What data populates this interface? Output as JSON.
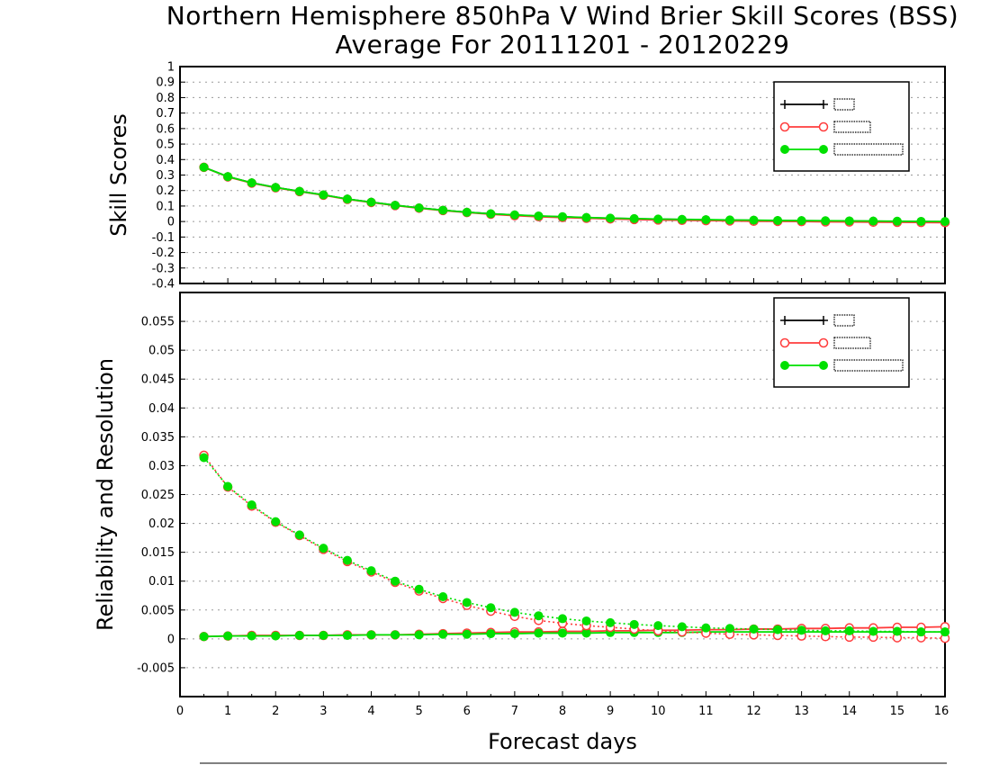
{
  "title": {
    "line1": "Northern Hemisphere 850hPa V Wind Brier Skill Scores (BSS)",
    "line2": "Average For 20111201 - 20120229"
  },
  "colors": {
    "series1": "#000000",
    "series2": "#ff3b3b",
    "series3": "#00e000",
    "grid": "#9a9a9a"
  },
  "chart_data": [
    {
      "type": "line",
      "ylabel": "Skill Scores",
      "xlabel": "",
      "ylim": [
        -0.4,
        1
      ],
      "xlim": [
        0,
        16
      ],
      "grid": true,
      "legend_position": "top-right",
      "y_ticks": [
        "-0.4",
        "-0.3",
        "-0.2",
        "-0.1",
        "0",
        "0.1",
        "0.2",
        "0.3",
        "0.4",
        "0.5",
        "0.6",
        "0.7",
        "0.8",
        "0.9",
        "1"
      ],
      "y_tick_values": [
        -0.4,
        -0.3,
        -0.2,
        -0.1,
        0,
        0.1,
        0.2,
        0.3,
        0.4,
        0.5,
        0.6,
        0.7,
        0.8,
        0.9,
        1
      ],
      "x": [
        0.5,
        1,
        1.5,
        2,
        2.5,
        3,
        3.5,
        4,
        4.5,
        5,
        5.5,
        6,
        6.5,
        7,
        7.5,
        8,
        8.5,
        9,
        9.5,
        10,
        10.5,
        11,
        11.5,
        12,
        12.5,
        13,
        13.5,
        14,
        14.5,
        15,
        15.5,
        16
      ],
      "series": [
        {
          "name": "",
          "marker": "plus",
          "style": "solid",
          "values": [
            0.35,
            0.29,
            0.25,
            0.22,
            0.195,
            0.172,
            0.145,
            0.125,
            0.105,
            0.088,
            0.073,
            0.06,
            0.05,
            0.042,
            0.035,
            0.03,
            0.025,
            0.021,
            0.018,
            0.015,
            0.013,
            0.011,
            0.009,
            0.008,
            0.006,
            0.005,
            0.004,
            0.003,
            0.002,
            0.001,
            0.0,
            -0.001
          ]
        },
        {
          "name": "",
          "marker": "open-circle",
          "style": "solid",
          "values": [
            0.35,
            0.288,
            0.248,
            0.218,
            0.193,
            0.17,
            0.143,
            0.123,
            0.103,
            0.086,
            0.071,
            0.058,
            0.047,
            0.038,
            0.031,
            0.026,
            0.021,
            0.017,
            0.013,
            0.01,
            0.008,
            0.006,
            0.004,
            0.002,
            0.001,
            0.0,
            -0.002,
            -0.003,
            -0.004,
            -0.005,
            -0.006,
            -0.007
          ]
        },
        {
          "name": "",
          "marker": "filled-circle",
          "style": "solid",
          "values": [
            0.35,
            0.29,
            0.25,
            0.22,
            0.195,
            0.172,
            0.145,
            0.125,
            0.105,
            0.088,
            0.073,
            0.06,
            0.05,
            0.043,
            0.036,
            0.031,
            0.026,
            0.022,
            0.019,
            0.016,
            0.014,
            0.012,
            0.01,
            0.009,
            0.007,
            0.006,
            0.005,
            0.004,
            0.003,
            0.002,
            0.001,
            0.0
          ]
        }
      ]
    },
    {
      "type": "line",
      "ylabel": "Reliability and Resolution",
      "xlabel": "Forecast days",
      "ylim": [
        -0.01,
        0.06
      ],
      "xlim": [
        0,
        16
      ],
      "grid": true,
      "legend_position": "top-right",
      "y_ticks": [
        "-0.005",
        "0",
        "0.005",
        "0.01",
        "0.015",
        "0.02",
        "0.025",
        "0.03",
        "0.035",
        "0.04",
        "0.045",
        "0.05",
        "0.055"
      ],
      "y_tick_values": [
        -0.005,
        0,
        0.005,
        0.01,
        0.015,
        0.02,
        0.025,
        0.03,
        0.035,
        0.04,
        0.045,
        0.05,
        0.055
      ],
      "x_ticks": [
        "0",
        "1",
        "2",
        "3",
        "4",
        "5",
        "6",
        "7",
        "8",
        "9",
        "10",
        "11",
        "12",
        "13",
        "14",
        "15",
        "16"
      ],
      "x": [
        0.5,
        1,
        1.5,
        2,
        2.5,
        3,
        3.5,
        4,
        4.5,
        5,
        5.5,
        6,
        6.5,
        7,
        7.5,
        8,
        8.5,
        9,
        9.5,
        10,
        10.5,
        11,
        11.5,
        12,
        12.5,
        13,
        13.5,
        14,
        14.5,
        15,
        15.5,
        16
      ],
      "series": [
        {
          "name": "",
          "group": "reliability",
          "marker": "open-circle",
          "style": "solid",
          "values": [
            0.0004,
            0.0005,
            0.0006,
            0.0006,
            0.0006,
            0.0006,
            0.0007,
            0.0007,
            0.0007,
            0.0008,
            0.0009,
            0.001,
            0.0011,
            0.0012,
            0.0012,
            0.0013,
            0.0013,
            0.0014,
            0.0014,
            0.0015,
            0.0015,
            0.0016,
            0.0016,
            0.0017,
            0.0017,
            0.0018,
            0.0018,
            0.0019,
            0.0019,
            0.002,
            0.002,
            0.0021
          ]
        },
        {
          "name": "",
          "group": "reliability",
          "marker": "filled-circle",
          "style": "solid",
          "values": [
            0.0004,
            0.0005,
            0.0005,
            0.0005,
            0.0006,
            0.0006,
            0.0006,
            0.0007,
            0.0007,
            0.0007,
            0.0008,
            0.0008,
            0.0009,
            0.0009,
            0.001,
            0.001,
            0.001,
            0.0011,
            0.0011,
            0.0011,
            0.0011,
            0.0012,
            0.0012,
            0.0012,
            0.0012,
            0.0012,
            0.0012,
            0.0012,
            0.0012,
            0.0012,
            0.0012,
            0.0012
          ]
        },
        {
          "name": "",
          "group": "resolution",
          "marker": "open-circle",
          "style": "dotted",
          "values": [
            0.0318,
            0.0263,
            0.023,
            0.0202,
            0.0179,
            0.0155,
            0.0134,
            0.0116,
            0.0098,
            0.0083,
            0.007,
            0.0058,
            0.0048,
            0.0039,
            0.0032,
            0.0027,
            0.0023,
            0.002,
            0.0017,
            0.0014,
            0.0012,
            0.001,
            0.0008,
            0.0007,
            0.0006,
            0.0005,
            0.0004,
            0.0003,
            0.0003,
            0.0002,
            0.0002,
            0.0001
          ]
        },
        {
          "name": "",
          "group": "resolution",
          "marker": "filled-circle",
          "style": "dotted",
          "values": [
            0.0314,
            0.0264,
            0.0232,
            0.0203,
            0.018,
            0.0157,
            0.0136,
            0.0118,
            0.01,
            0.0086,
            0.0073,
            0.0063,
            0.0054,
            0.0046,
            0.004,
            0.0035,
            0.0031,
            0.0028,
            0.0025,
            0.0023,
            0.0021,
            0.0019,
            0.0018,
            0.0017,
            0.0016,
            0.0015,
            0.0014,
            0.0014,
            0.0013,
            0.0013,
            0.0012,
            0.0012
          ]
        }
      ]
    }
  ]
}
